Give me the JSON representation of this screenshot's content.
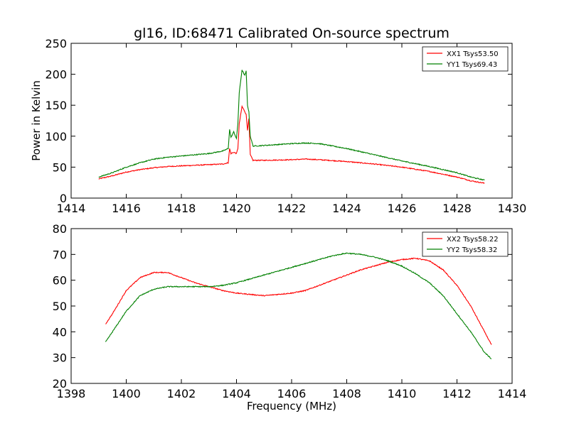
{
  "title": "gl16, ID:68471 Calibrated On-source spectrum",
  "colors": {
    "red": "#ff0000",
    "green": "#008000"
  },
  "chart_data": [
    {
      "type": "line",
      "xlabel": "",
      "ylabel": "Power in Kelvin",
      "xlim": [
        1414,
        1430
      ],
      "ylim": [
        0,
        250
      ],
      "xticks": [
        "1414",
        "1416",
        "1418",
        "1420",
        "1422",
        "1424",
        "1426",
        "1428",
        "1430"
      ],
      "yticks": [
        "0",
        "50",
        "100",
        "150",
        "200",
        "250"
      ],
      "grid": false,
      "legend": "top-right",
      "series": [
        {
          "name": "XX1 Tsys53.50",
          "color": "#ff0000",
          "points": [
            [
              1415.0,
              31
            ],
            [
              1415.5,
              36
            ],
            [
              1416.0,
              42
            ],
            [
              1416.5,
              46
            ],
            [
              1417.0,
              49
            ],
            [
              1417.5,
              51
            ],
            [
              1418.0,
              52
            ],
            [
              1418.5,
              53
            ],
            [
              1419.0,
              54
            ],
            [
              1419.5,
              55
            ],
            [
              1419.7,
              57
            ],
            [
              1419.75,
              80
            ],
            [
              1419.8,
              72
            ],
            [
              1419.9,
              74
            ],
            [
              1420.0,
              72
            ],
            [
              1420.05,
              80
            ],
            [
              1420.1,
              120
            ],
            [
              1420.2,
              148
            ],
            [
              1420.3,
              140
            ],
            [
              1420.35,
              135
            ],
            [
              1420.4,
              110
            ],
            [
              1420.45,
              128
            ],
            [
              1420.5,
              70
            ],
            [
              1420.6,
              61
            ],
            [
              1421.0,
              61
            ],
            [
              1422.0,
              62
            ],
            [
              1422.5,
              63
            ],
            [
              1423.0,
              62
            ],
            [
              1424.0,
              59
            ],
            [
              1425.0,
              55
            ],
            [
              1426.0,
              50
            ],
            [
              1427.0,
              43
            ],
            [
              1428.0,
              34
            ],
            [
              1428.5,
              28
            ],
            [
              1429.0,
              24
            ]
          ]
        },
        {
          "name": "YY1 Tsys69.43",
          "color": "#008000",
          "points": [
            [
              1415.0,
              34
            ],
            [
              1415.5,
              41
            ],
            [
              1416.0,
              50
            ],
            [
              1416.5,
              57
            ],
            [
              1417.0,
              63
            ],
            [
              1417.5,
              66
            ],
            [
              1418.0,
              68
            ],
            [
              1418.5,
              70
            ],
            [
              1419.0,
              72
            ],
            [
              1419.5,
              76
            ],
            [
              1419.7,
              80
            ],
            [
              1419.75,
              111
            ],
            [
              1419.8,
              98
            ],
            [
              1419.9,
              107
            ],
            [
              1420.0,
              96
            ],
            [
              1420.05,
              120
            ],
            [
              1420.1,
              170
            ],
            [
              1420.2,
              207
            ],
            [
              1420.3,
              198
            ],
            [
              1420.35,
              205
            ],
            [
              1420.4,
              150
            ],
            [
              1420.45,
              139
            ],
            [
              1420.5,
              100
            ],
            [
              1420.6,
              84
            ],
            [
              1421.0,
              85
            ],
            [
              1422.0,
              88
            ],
            [
              1422.5,
              89
            ],
            [
              1423.0,
              88
            ],
            [
              1424.0,
              80
            ],
            [
              1425.0,
              70
            ],
            [
              1426.0,
              60
            ],
            [
              1427.0,
              51
            ],
            [
              1428.0,
              41
            ],
            [
              1428.5,
              34
            ],
            [
              1429.0,
              29
            ]
          ]
        }
      ]
    },
    {
      "type": "line",
      "xlabel": "Frequency (MHz)",
      "ylabel": "",
      "xlim": [
        1398,
        1414
      ],
      "ylim": [
        20,
        80
      ],
      "xticks": [
        "1398",
        "1400",
        "1402",
        "1404",
        "1406",
        "1408",
        "1410",
        "1412",
        "1414"
      ],
      "yticks": [
        "20",
        "30",
        "40",
        "50",
        "60",
        "70",
        "80"
      ],
      "grid": false,
      "legend": "top-right",
      "series": [
        {
          "name": "XX2 Tsys58.22",
          "color": "#ff0000",
          "points": [
            [
              1399.25,
              43
            ],
            [
              1399.5,
              47
            ],
            [
              1400.0,
              56
            ],
            [
              1400.5,
              61
            ],
            [
              1401.0,
              63
            ],
            [
              1401.5,
              63
            ],
            [
              1402.0,
              61
            ],
            [
              1402.5,
              59
            ],
            [
              1403.0,
              57.5
            ],
            [
              1403.5,
              56
            ],
            [
              1404.0,
              55
            ],
            [
              1404.5,
              54.5
            ],
            [
              1405.0,
              54
            ],
            [
              1405.5,
              54.5
            ],
            [
              1406.0,
              55
            ],
            [
              1406.5,
              56
            ],
            [
              1407.0,
              58
            ],
            [
              1407.5,
              60
            ],
            [
              1408.0,
              62
            ],
            [
              1408.5,
              64
            ],
            [
              1409.0,
              65.5
            ],
            [
              1409.5,
              67
            ],
            [
              1410.0,
              68
            ],
            [
              1410.5,
              68.5
            ],
            [
              1411.0,
              67.5
            ],
            [
              1411.5,
              64
            ],
            [
              1412.0,
              58
            ],
            [
              1412.5,
              50
            ],
            [
              1413.0,
              40
            ],
            [
              1413.25,
              35
            ]
          ]
        },
        {
          "name": "YY2 Tsys58.32",
          "color": "#008000",
          "points": [
            [
              1399.25,
              36
            ],
            [
              1399.5,
              40
            ],
            [
              1400.0,
              48
            ],
            [
              1400.5,
              54
            ],
            [
              1401.0,
              56.5
            ],
            [
              1401.5,
              57.5
            ],
            [
              1402.0,
              57.5
            ],
            [
              1402.5,
              57.5
            ],
            [
              1403.0,
              57.5
            ],
            [
              1403.5,
              58
            ],
            [
              1404.0,
              59
            ],
            [
              1404.5,
              60.5
            ],
            [
              1405.0,
              62
            ],
            [
              1405.5,
              63.5
            ],
            [
              1406.0,
              65
            ],
            [
              1406.5,
              66.5
            ],
            [
              1407.0,
              68
            ],
            [
              1407.5,
              69.5
            ],
            [
              1408.0,
              70.5
            ],
            [
              1408.5,
              70
            ],
            [
              1409.0,
              69
            ],
            [
              1409.5,
              67.5
            ],
            [
              1410.0,
              65.5
            ],
            [
              1410.5,
              62.5
            ],
            [
              1411.0,
              59
            ],
            [
              1411.5,
              54
            ],
            [
              1412.0,
              47
            ],
            [
              1412.5,
              40
            ],
            [
              1413.0,
              32
            ],
            [
              1413.25,
              29.5
            ]
          ]
        }
      ]
    }
  ]
}
